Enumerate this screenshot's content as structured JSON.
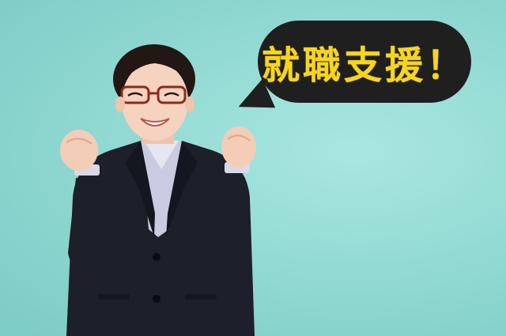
{
  "speech_bubble": {
    "text": "就職支援！",
    "text_color": "#f7d51f",
    "background_color": "#1f1f1f"
  },
  "background_color": "#8fd7d1",
  "figure": {
    "icon": "smiling-woman-in-business-suit-icon"
  }
}
